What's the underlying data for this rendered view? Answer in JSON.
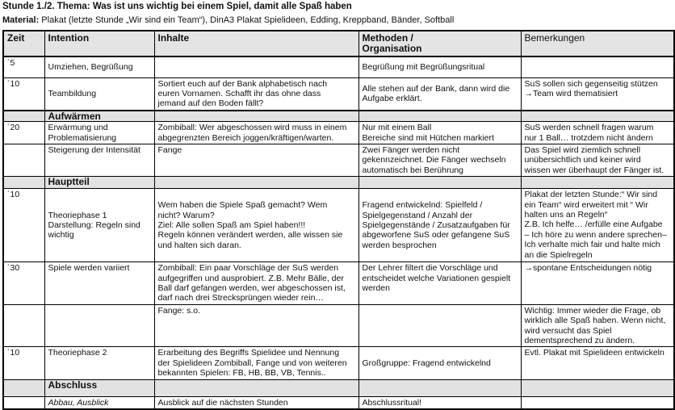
{
  "title": "Stunde 1./2. Thema: Was ist uns wichtig bei einem Spiel, damit alle Spaß haben",
  "material_label": "Material:",
  "material_text": " Plakat (letzte Stunde „Wir sind ein Team“), DinA3 Plakat Spielideen, Edding, Kreppband, Bänder, Softball",
  "columns": [
    "Zeit",
    "Intention",
    "Inhalte",
    "Methoden /\nOrganisation",
    "Bemerkungen"
  ],
  "rows": [
    {
      "cells": [
        [
          "´5"
        ],
        [
          "Umziehen, Begrüßung"
        ],
        [],
        [
          "Begrüßung mit Begrüßungsritual"
        ],
        []
      ]
    },
    {
      "cells": [
        [
          "´10"
        ],
        [
          "Teambildung"
        ],
        [
          "Sortiert euch auf der Bank alphabetisch nach",
          "euren Vornamen. Schafft ihr das ohne dass",
          "jemand auf den Boden fällt?"
        ],
        [
          "Alle stehen auf der Bank, dann wird die",
          "Aufgabe erklärt."
        ],
        [
          "SuS sollen sich gegenseitig stützen",
          "→Team wird thematisiert"
        ]
      ]
    },
    {
      "section": "Aufwärmen"
    },
    {
      "cells": [
        [
          "´20"
        ],
        [
          "Erwärmung und",
          "Problematisierung"
        ],
        [
          "Zombiball: Wer abgeschossen wird muss in einem",
          "abgegrenzten Bereich joggen/kräftigen/warten."
        ],
        [
          "Nur mit einem Ball",
          "Bereiche sind mit Hütchen markiert"
        ],
        [
          "SuS werden schnell fragen warum",
          "nur 1 Ball… trotzdem nicht ändern"
        ]
      ]
    },
    {
      "cells": [
        [],
        [
          "Steigerung der Intensität"
        ],
        [
          "Fange"
        ],
        [
          "Zwei Fänger werden nicht",
          "gekennzeichnet. Die Fänger wechseln",
          "automatisch bei Berührung"
        ],
        [
          "Das Spiel wird ziemlich schnell",
          "unübersichtlich und keiner wird",
          "wissen wer überhaupt der Fänger ist."
        ]
      ]
    },
    {
      "section": "Hauptteil"
    },
    {
      "cells": [
        [
          "´10"
        ],
        [
          "Theoriephase 1",
          "Darstellung: Regeln sind",
          "wichtig"
        ],
        [
          "Wem haben die Spiele Spaß gemacht? Wem",
          "nicht? Warum?",
          "Ziel: Alle sollen Spaß am Spiel haben!!!",
          "Regeln können verändert werden, alle wissen sie",
          "und halten sich daran."
        ],
        [
          "Fragend entwickelnd: Spielfeld /",
          "Spielgegenstand / Anzahl der",
          "Spielgegenstände / Zusatzaufgaben für",
          "abgeworfene SuS oder gefangene SuS",
          "werden besprochen"
        ],
        [
          "Plakat der letzten Stunde:“ Wir sind",
          "ein Team“ wird erweitert mit “ Wir",
          "halten uns an Regeln“",
          "Z.B. Ich helfe… /erfülle eine Aufgabe",
          "– Ich höre zu wenn andere sprechen–",
          "Ich verhalte mich fair und halte mich",
          "an die Spielregeln"
        ]
      ]
    },
    {
      "cells": [
        [
          "´30"
        ],
        [
          "Spiele werden variiert"
        ],
        [
          "Zombiball: Ein paar Vorschläge der SuS werden",
          "aufgegriffen und ausprobiert. Z.B. Mehr Bälle, der",
          "Ball darf gefangen werden, wer abgeschossen ist,",
          "darf nach drei Strecksprüngen wieder rein…"
        ],
        [
          "Der Lehrer filtert die Vorschläge und",
          "entscheidet welche Variationen gespielt",
          "werden"
        ],
        [
          "→spontane Entscheidungen nötig"
        ]
      ]
    },
    {
      "cells": [
        [],
        [],
        [
          "Fange: s.o."
        ],
        [],
        [
          "Wichtig: Immer wieder die Frage, ob",
          "wirklich alle Spaß haben. Wenn nicht,",
          "wird versucht das Spiel",
          "dementsprechend zu ändern."
        ]
      ]
    },
    {
      "cells": [
        [
          "´10"
        ],
        [
          "Theoriephase 2"
        ],
        [
          "Erarbeitung des Begriffs Spielidee und Nennung",
          "der Spielideen Zombiball, Fange und von weiteren",
          "bekannten Spielen: FB, HB, BB, VB, Tennis.."
        ],
        [
          "Großgruppe: Fragend entwickelnd"
        ],
        [
          "Evtl. Plakat mit Spielideen entwickeln"
        ]
      ]
    },
    {
      "section": "Abschluss"
    },
    {
      "cells": [
        [],
        [
          "Abbau, Ausblick"
        ],
        [
          "Ausblick auf die nächsten Stunden"
        ],
        [
          "Abschlussritual!"
        ],
        []
      ]
    }
  ]
}
